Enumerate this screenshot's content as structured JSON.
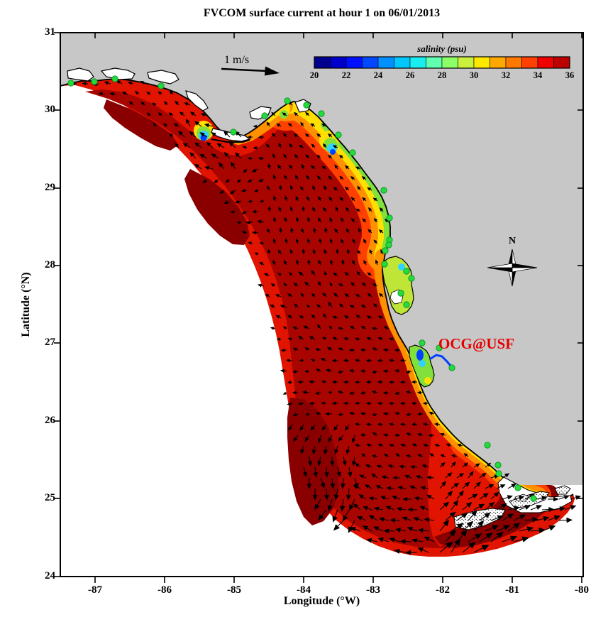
{
  "title": "FVCOM surface current at hour 1 on 06/01/2013",
  "axes": {
    "x_label": "Longitude (°W)",
    "y_label": "Latitude (°N)",
    "x_ticks": [
      "-87",
      "-86",
      "-85",
      "-84",
      "-83",
      "-82",
      "-81",
      "-80"
    ],
    "y_ticks": [
      "31",
      "30",
      "29",
      "28",
      "27",
      "26",
      "25",
      "24"
    ],
    "x_range": [
      -87.5,
      -80
    ],
    "y_range": [
      24,
      31
    ]
  },
  "colorbar": {
    "label": "salinity (psu)",
    "ticks": [
      "20",
      "22",
      "24",
      "26",
      "28",
      "30",
      "32",
      "34",
      "36"
    ],
    "range": [
      20,
      36
    ],
    "segment_colors": [
      "#00008f",
      "#0000cd",
      "#0010ff",
      "#0048ff",
      "#0090ff",
      "#00c8ff",
      "#18eef0",
      "#60ffb0",
      "#8cff66",
      "#c8f03c",
      "#ffe800",
      "#ffa800",
      "#ff7800",
      "#ff4000",
      "#f00000",
      "#bc0000"
    ]
  },
  "annotations": {
    "scale_arrow_label": "1 m/s",
    "watermark": "OCG@USF",
    "compass_label": "N"
  },
  "map_palette": {
    "red": "#e01400",
    "dark_red": "#a80400",
    "deep_red": "#8a0000",
    "orange_red": "#ff4000",
    "orange": "#ff9000",
    "yellow": "#ffe000",
    "green": "#82e03c",
    "yellow_green": "#bfe636",
    "cyan": "#30d2ff",
    "blue": "#0040ff",
    "land": "#c7c7c7",
    "station": "#22dc3c",
    "station_edge": "#0a8a22",
    "watermark_red": "#e80000",
    "arrow": "#000000"
  },
  "stations": [
    [
      100,
      117
    ],
    [
      133,
      115
    ],
    [
      162,
      111
    ],
    [
      227,
      121
    ],
    [
      329,
      186
    ],
    [
      373,
      163
    ],
    [
      405,
      142
    ],
    [
      432,
      148
    ],
    [
      453,
      160
    ],
    [
      477,
      190
    ],
    [
      497,
      215
    ],
    [
      541,
      268
    ],
    [
      549,
      307
    ],
    [
      549,
      338
    ],
    [
      548,
      345
    ],
    [
      543,
      353
    ],
    [
      542,
      372
    ],
    [
      573,
      382
    ],
    [
      580,
      392
    ],
    [
      565,
      413
    ],
    [
      573,
      429
    ],
    [
      595,
      483
    ],
    [
      619,
      490
    ],
    [
      637,
      518
    ],
    [
      687,
      627
    ],
    [
      702,
      655
    ],
    [
      703,
      667
    ],
    [
      730,
      687
    ],
    [
      752,
      702
    ]
  ],
  "chart_data": {
    "type": "heatmap",
    "title": "FVCOM surface current at hour 1 on 06/01/2013",
    "variable": "salinity",
    "units": "psu",
    "colorbar_range": [
      20,
      36
    ],
    "colorbar_tick_step": 2,
    "n_color_segments": 16,
    "xlabel": "Longitude (°W)",
    "ylabel": "Latitude (°N)",
    "xlim": [
      -87.5,
      -80
    ],
    "ylim": [
      24,
      31
    ],
    "x_ticks": [
      -87,
      -86,
      -85,
      -84,
      -83,
      -82,
      -81,
      -80
    ],
    "y_ticks": [
      31,
      30,
      29,
      28,
      27,
      26,
      25,
      24
    ],
    "vector_field": {
      "shown": true,
      "reference_vector": "1 m/s",
      "color": "black"
    },
    "n_station_markers": 29,
    "legend_position": "top inside axes",
    "grid": false,
    "description": "West Florida Shelf FVCOM model domain. Offshore salinity ~35-36 psu (red to dark red); fresher water (20-30 psu, blue/cyan/green/yellow bands) hugs the coast along the Big Bend, at Apalachicola Bay, Tampa Bay, Charlotte Harbor and the southwest Florida coast. Black current vectors cover the domain, strongest along the southern open boundary near the Florida Keys. Bright green dots mark coastal stations; land is gray; area outside the model domain is white."
  }
}
